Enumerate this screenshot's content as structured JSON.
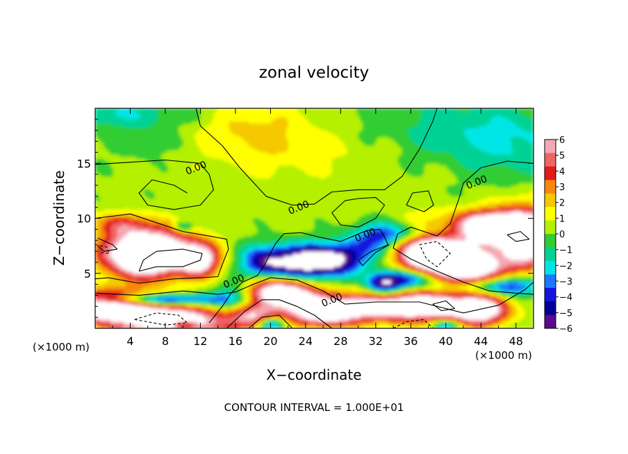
{
  "chart_data": {
    "type": "heatmap",
    "title": "zonal velocity",
    "xlabel": "X−coordinate",
    "ylabel": "Z−coordinate",
    "x_unit_left": "(×1000 m)",
    "x_unit_right": "(×1000 m)",
    "xlim": [
      0,
      50
    ],
    "ylim": [
      0,
      20
    ],
    "x_ticks": [
      4,
      8,
      12,
      16,
      20,
      24,
      28,
      32,
      36,
      40,
      44,
      48
    ],
    "y_ticks": [
      5,
      10,
      15
    ],
    "footer": "CONTOUR INTERVAL = 1.000E+01",
    "contour_labels": [
      {
        "text": "0.00",
        "x": 11.5,
        "y": 14.6
      },
      {
        "text": "0.00",
        "x": 23.2,
        "y": 11.0
      },
      {
        "text": "0.00",
        "x": 30.8,
        "y": 8.5
      },
      {
        "text": "0.00",
        "x": 43.5,
        "y": 13.3
      },
      {
        "text": "0.00",
        "x": 15.8,
        "y": 4.3
      },
      {
        "text": "0.00",
        "x": 27.0,
        "y": 2.6
      }
    ],
    "colorbar": {
      "ticks": [
        "6",
        "5",
        "4",
        "3",
        "2",
        "1",
        "0",
        "−1",
        "−2",
        "−3",
        "−4",
        "−5",
        "−6"
      ],
      "colors": [
        "#f4a8b4",
        "#f06464",
        "#e11a1a",
        "#f7870f",
        "#f5c800",
        "#ffff00",
        "#b4f000",
        "#32cd32",
        "#00d296",
        "#00e6e6",
        "#1e78ff",
        "#1414dc",
        "#000096",
        "#5a0a8c"
      ],
      "range": [
        -6,
        6
      ],
      "saturated_color": "#ffffff"
    },
    "field_blobs": [
      {
        "x": 24,
        "y": 13,
        "rx": 30,
        "ry": 7,
        "v": 0.4
      },
      {
        "x": 18,
        "y": 18,
        "rx": 7,
        "ry": 3,
        "v": 1.8
      },
      {
        "x": 2,
        "y": 19.5,
        "rx": 10,
        "ry": 1.3,
        "v": -1.8
      },
      {
        "x": 42,
        "y": 18,
        "rx": 11,
        "ry": 3,
        "v": -1.6
      },
      {
        "x": 6,
        "y": 17,
        "rx": 4,
        "ry": 1.5,
        "v": -0.9
      },
      {
        "x": 27,
        "y": 16,
        "rx": 9,
        "ry": 2.5,
        "v": 0.6
      },
      {
        "x": 48,
        "y": 16,
        "rx": 6,
        "ry": 3,
        "v": -1.2
      },
      {
        "x": 6,
        "y": 6.8,
        "rx": 5,
        "ry": 2.1,
        "v": 12
      },
      {
        "x": 12,
        "y": 6.2,
        "rx": 2.2,
        "ry": 1.5,
        "v": 6
      },
      {
        "x": 3,
        "y": 9.5,
        "rx": 3,
        "ry": 1,
        "v": 3
      },
      {
        "x": 1,
        "y": 2.0,
        "rx": 6,
        "ry": 1.4,
        "v": 9
      },
      {
        "x": 9,
        "y": 0.6,
        "rx": 6,
        "ry": 1.3,
        "v": 9
      },
      {
        "x": 45,
        "y": 9.2,
        "rx": 4,
        "ry": 1.4,
        "v": 10
      },
      {
        "x": 49,
        "y": 8.0,
        "rx": 3,
        "ry": 3,
        "v": 8
      },
      {
        "x": 38,
        "y": 7.0,
        "rx": 3.5,
        "ry": 2.2,
        "v": 11
      },
      {
        "x": 43,
        "y": 5.5,
        "rx": 3.5,
        "ry": 2,
        "v": 9
      },
      {
        "x": 36,
        "y": 2.0,
        "rx": 8,
        "ry": 1.4,
        "v": 9
      },
      {
        "x": 21,
        "y": 3.2,
        "rx": 4,
        "ry": 1.4,
        "v": 9
      },
      {
        "x": 26,
        "y": 1.5,
        "rx": 4,
        "ry": 1.3,
        "v": 8
      },
      {
        "x": 18,
        "y": 1.0,
        "rx": 2.5,
        "ry": 1,
        "v": 5
      },
      {
        "x": 44,
        "y": 1.5,
        "rx": 3,
        "ry": 1.3,
        "v": 6
      },
      {
        "x": 24,
        "y": 6.0,
        "rx": 4.5,
        "ry": 1.5,
        "v": -8
      },
      {
        "x": 19,
        "y": 6.0,
        "rx": 2.5,
        "ry": 1.5,
        "v": -3.5
      },
      {
        "x": 28,
        "y": 6.5,
        "rx": 3,
        "ry": 1.3,
        "v": -3.5
      },
      {
        "x": 32,
        "y": 8.0,
        "rx": 3,
        "ry": 1.5,
        "v": -3
      },
      {
        "x": 37,
        "y": 8.6,
        "rx": 5,
        "ry": 1.0,
        "v": -4.5
      },
      {
        "x": 36,
        "y": 4.5,
        "rx": 3,
        "ry": 0.9,
        "v": -5
      },
      {
        "x": 33,
        "y": 4.0,
        "rx": 2,
        "ry": 1.0,
        "v": -6
      },
      {
        "x": 44,
        "y": 3.8,
        "rx": 5,
        "ry": 0.8,
        "v": -4.5
      },
      {
        "x": 7,
        "y": 2.6,
        "rx": 7,
        "ry": 0.5,
        "v": -6
      },
      {
        "x": 16,
        "y": 3.0,
        "rx": 2.5,
        "ry": 1.2,
        "v": -3
      },
      {
        "x": 20,
        "y": 0.4,
        "rx": 1.5,
        "ry": 0.6,
        "v": -5
      },
      {
        "x": 10,
        "y": 0.3,
        "rx": 1.5,
        "ry": 0.5,
        "v": -5
      },
      {
        "x": 40,
        "y": 0.3,
        "rx": 1.5,
        "ry": 0.5,
        "v": -4
      },
      {
        "x": 48,
        "y": 4.0,
        "rx": 3,
        "ry": 1.2,
        "v": -3
      },
      {
        "x": 10,
        "y": 9.2,
        "rx": 1.0,
        "ry": 0.5,
        "v": -3
      }
    ],
    "contour_lines": [
      {
        "style": "solid",
        "points": [
          [
            0,
            14.9
          ],
          [
            4,
            15.1
          ],
          [
            8,
            15.3
          ],
          [
            12,
            15.0
          ],
          [
            13,
            14.0
          ],
          [
            13.5,
            12.6
          ],
          [
            12,
            11.2
          ],
          [
            9,
            10.8
          ],
          [
            6,
            11.2
          ],
          [
            5,
            12.3
          ],
          [
            6.5,
            13.5
          ],
          [
            9,
            13.0
          ],
          [
            10.5,
            12.3
          ]
        ]
      },
      {
        "style": "solid",
        "points": [
          [
            0,
            10.0
          ],
          [
            4,
            10.4
          ],
          [
            7,
            9.6
          ],
          [
            10,
            8.8
          ],
          [
            13,
            8.4
          ],
          [
            15,
            8.1
          ],
          [
            15.2,
            7.2
          ],
          [
            14.5,
            5.8
          ],
          [
            14,
            4.7
          ],
          [
            12,
            4.6
          ],
          [
            9,
            4.5
          ],
          [
            5,
            4.1
          ],
          [
            1.5,
            4.6
          ],
          [
            0,
            4.5
          ]
        ]
      },
      {
        "style": "solid",
        "points": [
          [
            0,
            3.2
          ],
          [
            5,
            3.0
          ],
          [
            10,
            3.4
          ],
          [
            14,
            3.1
          ],
          [
            16,
            3.3
          ],
          [
            18,
            4.0
          ],
          [
            20,
            4.6
          ],
          [
            23,
            4.4
          ],
          [
            26,
            3.4
          ],
          [
            28.5,
            2.2
          ],
          [
            32,
            2.4
          ],
          [
            37,
            2.4
          ],
          [
            42,
            1.4
          ],
          [
            46,
            2.1
          ],
          [
            49,
            3.5
          ],
          [
            50,
            4.2
          ]
        ]
      },
      {
        "style": "solid",
        "points": [
          [
            15,
            0
          ],
          [
            17,
            1.5
          ],
          [
            19,
            2.6
          ],
          [
            21,
            2.6
          ],
          [
            23,
            2.0
          ],
          [
            25,
            1.2
          ],
          [
            27,
            0
          ]
        ]
      },
      {
        "style": "solid",
        "points": [
          [
            17.5,
            0
          ],
          [
            19,
            1.0
          ],
          [
            21,
            1.2
          ],
          [
            22.5,
            0
          ]
        ]
      },
      {
        "style": "solid",
        "points": [
          [
            13,
            0.5
          ],
          [
            14.5,
            2.0
          ],
          [
            15.5,
            3.2
          ],
          [
            16.8,
            4.2
          ],
          [
            18.5,
            4.8
          ],
          [
            19.2,
            5.6
          ],
          [
            20.5,
            7.6
          ],
          [
            21.5,
            8.6
          ],
          [
            23.5,
            8.7
          ],
          [
            25.5,
            8.3
          ],
          [
            28,
            7.9
          ],
          [
            31,
            8.9
          ],
          [
            32.5,
            9.0
          ],
          [
            33,
            8.3
          ],
          [
            33.4,
            7.6
          ]
        ]
      },
      {
        "style": "solid",
        "points": [
          [
            11.5,
            20
          ],
          [
            12,
            18.4
          ],
          [
            14.5,
            16.6
          ],
          [
            16.5,
            14.6
          ],
          [
            19.5,
            12.0
          ],
          [
            22.5,
            11.2
          ],
          [
            25,
            11.3
          ],
          [
            27,
            12.4
          ],
          [
            30,
            12.6
          ],
          [
            33,
            12.6
          ],
          [
            35,
            13.8
          ],
          [
            37,
            16.3
          ],
          [
            38.5,
            18.8
          ],
          [
            39,
            20
          ]
        ]
      },
      {
        "style": "solid",
        "points": [
          [
            27,
            10.5
          ],
          [
            28.5,
            11.6
          ],
          [
            30,
            11.8
          ],
          [
            32,
            11.9
          ],
          [
            33,
            11.2
          ],
          [
            32,
            10.0
          ],
          [
            30,
            9.2
          ],
          [
            28,
            9.4
          ],
          [
            27,
            10.5
          ]
        ]
      },
      {
        "style": "solid",
        "points": [
          [
            35.5,
            11.2
          ],
          [
            36.2,
            12.3
          ],
          [
            38,
            12.5
          ],
          [
            38.6,
            11.2
          ],
          [
            37.5,
            10.6
          ],
          [
            35.5,
            11.2
          ]
        ]
      },
      {
        "style": "solid",
        "points": [
          [
            30,
            6.2
          ],
          [
            31.5,
            7.0
          ],
          [
            33.5,
            7.6
          ],
          [
            32,
            6.9
          ],
          [
            30.5,
            5.7
          ],
          [
            30,
            6.2
          ]
        ]
      },
      {
        "style": "solid",
        "points": [
          [
            50,
            15.0
          ],
          [
            47,
            15.2
          ],
          [
            44,
            14.6
          ],
          [
            42,
            13.2
          ],
          [
            41.5,
            11.8
          ],
          [
            40.5,
            9.5
          ],
          [
            39,
            8.4
          ],
          [
            37.5,
            8.8
          ],
          [
            36,
            9.2
          ],
          [
            34.5,
            8.6
          ],
          [
            34,
            7.3
          ],
          [
            36,
            6.3
          ],
          [
            39,
            5.2
          ],
          [
            42,
            4.2
          ],
          [
            45,
            3.4
          ],
          [
            48,
            3.2
          ],
          [
            50,
            3.1
          ]
        ]
      },
      {
        "style": "solid",
        "points": [
          [
            5,
            5.2
          ],
          [
            7,
            5.6
          ],
          [
            10,
            5.6
          ],
          [
            12,
            6.2
          ],
          [
            12.2,
            6.8
          ],
          [
            10,
            7.2
          ],
          [
            7,
            7.0
          ],
          [
            5.5,
            6.2
          ],
          [
            5,
            5.2
          ]
        ]
      },
      {
        "style": "solid",
        "points": [
          [
            0.3,
            8.2
          ],
          [
            2,
            7.6
          ],
          [
            2.5,
            7.2
          ],
          [
            1,
            7.0
          ],
          [
            0.3,
            7.5
          ]
        ]
      },
      {
        "style": "solid",
        "points": [
          [
            38.5,
            2.2
          ],
          [
            40,
            2.5
          ],
          [
            41,
            1.8
          ],
          [
            39.5,
            1.6
          ],
          [
            38.5,
            2.2
          ]
        ]
      },
      {
        "style": "solid",
        "points": [
          [
            47,
            8.5
          ],
          [
            48.5,
            8.8
          ],
          [
            49.5,
            8.1
          ],
          [
            48,
            7.9
          ],
          [
            47,
            8.5
          ]
        ]
      },
      {
        "style": "dashed",
        "points": [
          [
            37,
            7.6
          ],
          [
            39,
            7.9
          ],
          [
            40.5,
            6.8
          ],
          [
            39,
            5.6
          ],
          [
            37.8,
            6.3
          ],
          [
            37,
            7.6
          ]
        ]
      },
      {
        "style": "dashed",
        "points": [
          [
            4.5,
            0.8
          ],
          [
            7,
            1.4
          ],
          [
            9.5,
            1.2
          ],
          [
            10.5,
            0.5
          ],
          [
            8,
            0.3
          ],
          [
            4.5,
            0.8
          ]
        ]
      },
      {
        "style": "dashed",
        "points": [
          [
            34,
            0
          ],
          [
            35.5,
            0.6
          ],
          [
            37.5,
            0.8
          ],
          [
            38.5,
            0
          ]
        ]
      },
      {
        "style": "dashed",
        "points": [
          [
            0,
            7.6
          ],
          [
            1.3,
            7.4
          ],
          [
            1.6,
            6.8
          ],
          [
            0.5,
            6.9
          ]
        ]
      }
    ]
  }
}
